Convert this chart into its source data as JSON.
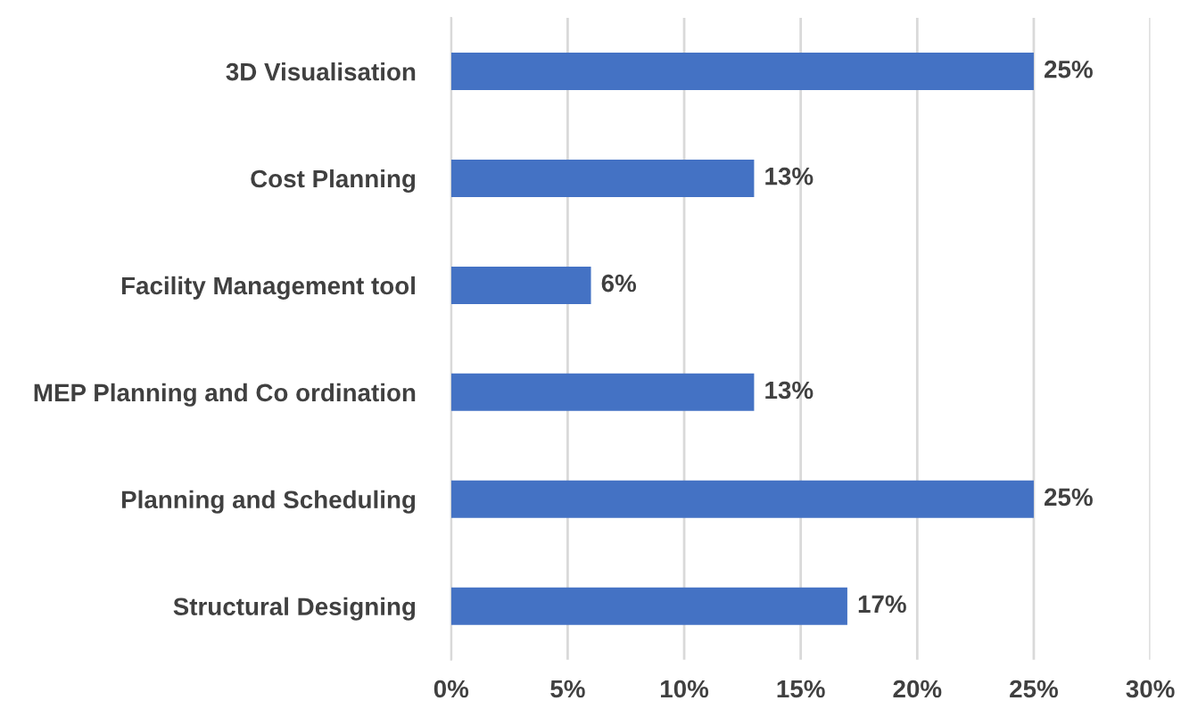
{
  "chart_data": {
    "type": "bar",
    "orientation": "horizontal",
    "categories": [
      "3D Visualisation",
      "Cost Planning",
      "Facility Management tool",
      "MEP Planning and Co ordination",
      "Planning and Scheduling",
      "Structural Designing"
    ],
    "values": [
      25,
      13,
      6,
      13,
      25,
      17
    ],
    "value_labels": [
      "25%",
      "13%",
      "6%",
      "13%",
      "25%",
      "17%"
    ],
    "color": "#4472c4",
    "xlim": [
      0,
      30
    ],
    "xticks": [
      {
        "value": 0,
        "label": "0%"
      },
      {
        "value": 5,
        "label": "5%"
      },
      {
        "value": 10,
        "label": "10%"
      },
      {
        "value": 15,
        "label": "15%"
      },
      {
        "value": 20,
        "label": "20%"
      },
      {
        "value": 25,
        "label": "25%"
      },
      {
        "value": 30,
        "label": "30%"
      }
    ],
    "grid": "x"
  }
}
